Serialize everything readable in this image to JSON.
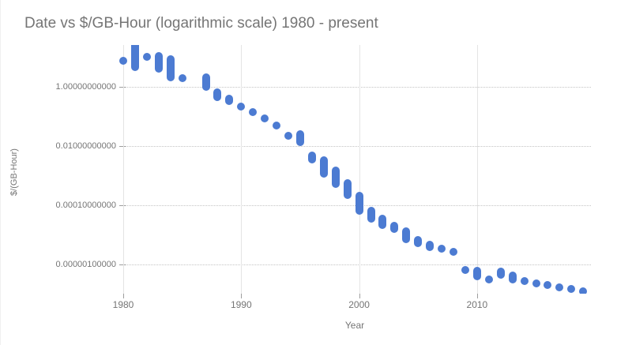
{
  "chart": {
    "title": "Date vs $/GB-Hour (logarithmic scale) 1980 - present",
    "x_axis": {
      "title": "Year"
    },
    "y_axis": {
      "title": "$/(GB-Hour)"
    }
  },
  "colors": {
    "point": "#4c7bd2",
    "h_grid": "#c4c4c4",
    "v_grid": "#e4e4e4",
    "tick": "#9e9e9e",
    "label": "#757575",
    "background": "#ffffff"
  },
  "chart_data": {
    "type": "scatter",
    "title": "Date vs $/GB-Hour (logarithmic scale) 1980 - present",
    "xlabel": "Year",
    "ylabel": "$/(GB-Hour)",
    "y_scale": "log10",
    "grid": true,
    "legend": "none",
    "x_ticks": [
      1980,
      1990,
      2000,
      2010
    ],
    "y_ticks": [
      {
        "label": "1.00000000000",
        "value": 1
      },
      {
        "label": "0.01000000000",
        "value": 0.01
      },
      {
        "label": "0.00010000000",
        "value": 0.0001
      },
      {
        "label": "0.00000100000",
        "value": 1e-06
      }
    ],
    "xlim": [
      1979.4,
      2019.7
    ],
    "ylim": [
      8e-08,
      30
    ],
    "points": [
      {
        "year": 1980,
        "min": 7.6,
        "max": 7.6
      },
      {
        "year": 1981,
        "min": 4.6,
        "max": 26
      },
      {
        "year": 1982,
        "min": 10.3,
        "max": 10.3
      },
      {
        "year": 1983,
        "min": 4.1,
        "max": 11
      },
      {
        "year": 1984,
        "min": 2.1,
        "max": 8.6
      },
      {
        "year": 1985,
        "min": 1.96,
        "max": 1.96
      },
      {
        "year": 1987,
        "min": 1.0,
        "max": 2.1
      },
      {
        "year": 1988,
        "min": 0.45,
        "max": 0.65
      },
      {
        "year": 1989,
        "min": 0.33,
        "max": 0.4
      },
      {
        "year": 1990,
        "min": 0.215,
        "max": 0.215
      },
      {
        "year": 1991,
        "min": 0.14,
        "max": 0.14
      },
      {
        "year": 1992,
        "min": 0.086,
        "max": 0.086
      },
      {
        "year": 1993,
        "min": 0.049,
        "max": 0.049
      },
      {
        "year": 1994,
        "min": 0.022,
        "max": 0.022
      },
      {
        "year": 1995,
        "min": 0.014,
        "max": 0.025
      },
      {
        "year": 1996,
        "min": 0.0035,
        "max": 0.0047
      },
      {
        "year": 1997,
        "min": 0.0012,
        "max": 0.0033
      },
      {
        "year": 1998,
        "min": 0.00052,
        "max": 0.0015
      },
      {
        "year": 1999,
        "min": 0.00022,
        "max": 0.00055
      },
      {
        "year": 2000,
        "min": 6.5e-05,
        "max": 0.00021
      },
      {
        "year": 2001,
        "min": 3.5e-05,
        "max": 6.5e-05
      },
      {
        "year": 2002,
        "min": 2.1e-05,
        "max": 3.5e-05
      },
      {
        "year": 2003,
        "min": 1.6e-05,
        "max": 2e-05
      },
      {
        "year": 2004,
        "min": 7.1e-06,
        "max": 1.3e-05
      },
      {
        "year": 2005,
        "min": 5.3e-06,
        "max": 6.8e-06
      },
      {
        "year": 2006,
        "min": 3.8e-06,
        "max": 4.6e-06
      },
      {
        "year": 2007,
        "min": 3.5e-06,
        "max": 3.5e-06
      },
      {
        "year": 2008,
        "min": 2.6e-06,
        "max": 2.6e-06
      },
      {
        "year": 2009,
        "min": 6.5e-07,
        "max": 6.5e-07
      },
      {
        "year": 2010,
        "min": 4e-07,
        "max": 6.2e-07
      },
      {
        "year": 2011,
        "min": 3.1e-07,
        "max": 3.1e-07
      },
      {
        "year": 2012,
        "min": 4.5e-07,
        "max": 5.8e-07
      },
      {
        "year": 2013,
        "min": 3.2e-07,
        "max": 4.2e-07
      },
      {
        "year": 2014,
        "min": 2.7e-07,
        "max": 2.7e-07
      },
      {
        "year": 2015,
        "min": 2.3e-07,
        "max": 2.3e-07
      },
      {
        "year": 2016,
        "min": 2e-07,
        "max": 2e-07
      },
      {
        "year": 2017,
        "min": 1.7e-07,
        "max": 1.7e-07
      },
      {
        "year": 2018,
        "min": 1.45e-07,
        "max": 1.45e-07
      },
      {
        "year": 2019,
        "min": 1.25e-07,
        "max": 1.25e-07
      }
    ]
  }
}
